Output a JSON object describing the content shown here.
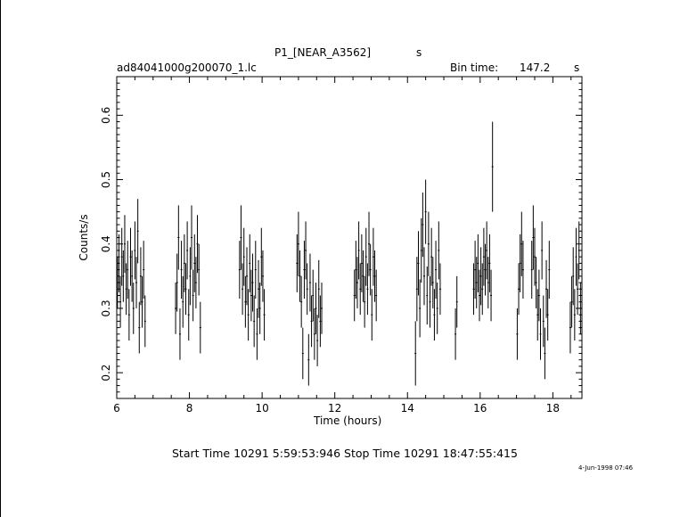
{
  "header": {
    "title": "P1_[NEAR_A3562]",
    "title_unit": "s",
    "filename": "ad84041000g200070_1.lc",
    "bin_label": "Bin time:",
    "bin_value": "147.2",
    "bin_unit": "s"
  },
  "footer": {
    "times": "Start Time 10291  5:59:53:946    Stop Time 10291  18:47:55:415",
    "stamp": "4-Jun-1998 07:46"
  },
  "chart_data": {
    "type": "scatter",
    "xlabel": "Time (hours)",
    "ylabel": "Counts/s",
    "xlim": [
      6,
      18.8
    ],
    "ylim": [
      0.16,
      0.66
    ],
    "xticks": [
      "6",
      "8",
      "10",
      "12",
      "14",
      "16",
      "18"
    ],
    "yticks": [
      "0.2",
      "0.3",
      "0.4",
      "0.5",
      "0.6"
    ],
    "error_bars": true,
    "points": [
      [
        6.02,
        0.34,
        0.04
      ],
      [
        6.06,
        0.37,
        0.045
      ],
      [
        6.1,
        0.31,
        0.04
      ],
      [
        6.14,
        0.38,
        0.045
      ],
      [
        6.18,
        0.35,
        0.04
      ],
      [
        6.22,
        0.4,
        0.045
      ],
      [
        6.26,
        0.33,
        0.04
      ],
      [
        6.3,
        0.36,
        0.045
      ],
      [
        6.34,
        0.29,
        0.04
      ],
      [
        6.38,
        0.38,
        0.045
      ],
      [
        6.42,
        0.35,
        0.04
      ],
      [
        6.46,
        0.3,
        0.04
      ],
      [
        6.5,
        0.39,
        0.045
      ],
      [
        6.54,
        0.34,
        0.04
      ],
      [
        6.58,
        0.42,
        0.05
      ],
      [
        6.62,
        0.27,
        0.04
      ],
      [
        6.66,
        0.35,
        0.045
      ],
      [
        6.7,
        0.31,
        0.04
      ],
      [
        6.74,
        0.36,
        0.045
      ],
      [
        6.78,
        0.28,
        0.04
      ],
      [
        7.62,
        0.3,
        0.04
      ],
      [
        7.66,
        0.34,
        0.045
      ],
      [
        7.7,
        0.41,
        0.05
      ],
      [
        7.74,
        0.26,
        0.04
      ],
      [
        7.78,
        0.36,
        0.045
      ],
      [
        7.82,
        0.31,
        0.04
      ],
      [
        7.86,
        0.37,
        0.045
      ],
      [
        7.9,
        0.33,
        0.04
      ],
      [
        7.94,
        0.39,
        0.045
      ],
      [
        7.98,
        0.29,
        0.04
      ],
      [
        8.02,
        0.35,
        0.045
      ],
      [
        8.06,
        0.41,
        0.05
      ],
      [
        8.1,
        0.32,
        0.04
      ],
      [
        8.14,
        0.37,
        0.045
      ],
      [
        8.18,
        0.34,
        0.04
      ],
      [
        8.22,
        0.4,
        0.045
      ],
      [
        8.26,
        0.36,
        0.04
      ],
      [
        8.3,
        0.27,
        0.04
      ],
      [
        9.38,
        0.36,
        0.045
      ],
      [
        9.42,
        0.41,
        0.05
      ],
      [
        9.46,
        0.33,
        0.04
      ],
      [
        9.5,
        0.38,
        0.045
      ],
      [
        9.54,
        0.31,
        0.04
      ],
      [
        9.58,
        0.35,
        0.045
      ],
      [
        9.62,
        0.29,
        0.04
      ],
      [
        9.66,
        0.37,
        0.045
      ],
      [
        9.7,
        0.32,
        0.04
      ],
      [
        9.74,
        0.34,
        0.045
      ],
      [
        9.78,
        0.28,
        0.04
      ],
      [
        9.82,
        0.36,
        0.045
      ],
      [
        9.86,
        0.26,
        0.04
      ],
      [
        9.9,
        0.33,
        0.045
      ],
      [
        9.94,
        0.3,
        0.04
      ],
      [
        9.98,
        0.38,
        0.045
      ],
      [
        10.02,
        0.35,
        0.04
      ],
      [
        10.06,
        0.29,
        0.04
      ],
      [
        10.96,
        0.37,
        0.045
      ],
      [
        11.0,
        0.4,
        0.05
      ],
      [
        11.04,
        0.35,
        0.04
      ],
      [
        11.08,
        0.31,
        0.04
      ],
      [
        11.12,
        0.23,
        0.04
      ],
      [
        11.16,
        0.36,
        0.045
      ],
      [
        11.2,
        0.39,
        0.045
      ],
      [
        11.24,
        0.33,
        0.04
      ],
      [
        11.28,
        0.22,
        0.04
      ],
      [
        11.32,
        0.34,
        0.045
      ],
      [
        11.36,
        0.28,
        0.04
      ],
      [
        11.4,
        0.32,
        0.04
      ],
      [
        11.44,
        0.26,
        0.04
      ],
      [
        11.48,
        0.3,
        0.04
      ],
      [
        11.52,
        0.25,
        0.04
      ],
      [
        11.56,
        0.33,
        0.045
      ],
      [
        11.6,
        0.28,
        0.04
      ],
      [
        11.64,
        0.3,
        0.04
      ],
      [
        12.54,
        0.32,
        0.04
      ],
      [
        12.58,
        0.36,
        0.045
      ],
      [
        12.62,
        0.34,
        0.04
      ],
      [
        12.66,
        0.39,
        0.045
      ],
      [
        12.7,
        0.33,
        0.04
      ],
      [
        12.74,
        0.37,
        0.045
      ],
      [
        12.78,
        0.35,
        0.04
      ],
      [
        12.82,
        0.31,
        0.04
      ],
      [
        12.86,
        0.38,
        0.045
      ],
      [
        12.9,
        0.33,
        0.04
      ],
      [
        12.94,
        0.4,
        0.05
      ],
      [
        12.98,
        0.36,
        0.04
      ],
      [
        13.02,
        0.29,
        0.04
      ],
      [
        13.06,
        0.38,
        0.045
      ],
      [
        13.1,
        0.35,
        0.04
      ],
      [
        13.14,
        0.32,
        0.04
      ],
      [
        14.22,
        0.23,
        0.05
      ],
      [
        14.26,
        0.33,
        0.05
      ],
      [
        14.3,
        0.37,
        0.05
      ],
      [
        14.34,
        0.3,
        0.045
      ],
      [
        14.38,
        0.39,
        0.05
      ],
      [
        14.42,
        0.43,
        0.05
      ],
      [
        14.46,
        0.35,
        0.045
      ],
      [
        14.5,
        0.45,
        0.05
      ],
      [
        14.54,
        0.32,
        0.045
      ],
      [
        14.58,
        0.4,
        0.05
      ],
      [
        14.62,
        0.31,
        0.04
      ],
      [
        14.66,
        0.38,
        0.045
      ],
      [
        14.7,
        0.34,
        0.04
      ],
      [
        14.74,
        0.29,
        0.04
      ],
      [
        14.78,
        0.36,
        0.045
      ],
      [
        14.82,
        0.3,
        0.04
      ],
      [
        14.86,
        0.39,
        0.045
      ],
      [
        14.9,
        0.33,
        0.04
      ],
      [
        15.32,
        0.26,
        0.04
      ],
      [
        15.36,
        0.31,
        0.04
      ],
      [
        15.82,
        0.33,
        0.04
      ],
      [
        15.86,
        0.36,
        0.045
      ],
      [
        15.9,
        0.34,
        0.04
      ],
      [
        15.94,
        0.37,
        0.045
      ],
      [
        15.98,
        0.32,
        0.04
      ],
      [
        16.02,
        0.35,
        0.045
      ],
      [
        16.06,
        0.33,
        0.04
      ],
      [
        16.1,
        0.38,
        0.045
      ],
      [
        16.14,
        0.36,
        0.04
      ],
      [
        16.18,
        0.39,
        0.045
      ],
      [
        16.22,
        0.34,
        0.04
      ],
      [
        16.26,
        0.37,
        0.045
      ],
      [
        16.3,
        0.32,
        0.04
      ],
      [
        16.34,
        0.52,
        0.07
      ],
      [
        17.02,
        0.26,
        0.04
      ],
      [
        17.06,
        0.33,
        0.04
      ],
      [
        17.1,
        0.37,
        0.045
      ],
      [
        17.14,
        0.4,
        0.05
      ],
      [
        17.18,
        0.36,
        0.045
      ],
      [
        17.42,
        0.36,
        0.045
      ],
      [
        17.46,
        0.41,
        0.05
      ],
      [
        17.5,
        0.38,
        0.045
      ],
      [
        17.54,
        0.34,
        0.04
      ],
      [
        17.58,
        0.29,
        0.04
      ],
      [
        17.62,
        0.32,
        0.04
      ],
      [
        17.66,
        0.26,
        0.04
      ],
      [
        17.7,
        0.39,
        0.045
      ],
      [
        17.74,
        0.28,
        0.04
      ],
      [
        17.78,
        0.23,
        0.04
      ],
      [
        17.82,
        0.33,
        0.045
      ],
      [
        17.86,
        0.29,
        0.04
      ],
      [
        17.9,
        0.36,
        0.045
      ],
      [
        18.48,
        0.27,
        0.04
      ],
      [
        18.52,
        0.31,
        0.04
      ],
      [
        18.56,
        0.35,
        0.045
      ],
      [
        18.6,
        0.29,
        0.04
      ],
      [
        18.64,
        0.38,
        0.045
      ],
      [
        18.68,
        0.33,
        0.04
      ],
      [
        18.72,
        0.39,
        0.045
      ],
      [
        18.76,
        0.3,
        0.04
      ]
    ]
  }
}
